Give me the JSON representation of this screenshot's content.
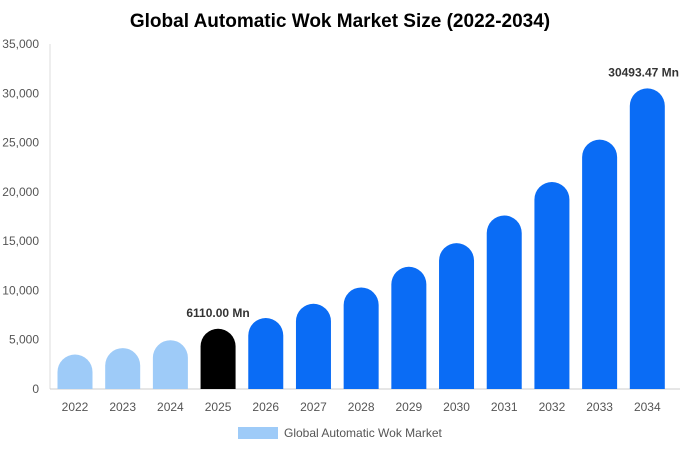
{
  "chart_data": {
    "type": "bar",
    "title": "Global Automatic Wok Market Size (2022-2034)",
    "xlabel": "",
    "ylabel": "",
    "categories": [
      "2022",
      "2023",
      "2024",
      "2025",
      "2026",
      "2027",
      "2028",
      "2029",
      "2030",
      "2031",
      "2032",
      "2033",
      "2034"
    ],
    "series": [
      {
        "name": "Global Automatic Wok Market",
        "values": [
          3500,
          4150,
          4950,
          6110,
          7200,
          8650,
          10300,
          12400,
          14800,
          17600,
          21000,
          25300,
          30493.47
        ]
      }
    ],
    "ylim": [
      0,
      35000
    ],
    "yticks": [
      0,
      5000,
      10000,
      15000,
      20000,
      25000,
      30000,
      35000
    ],
    "ytick_labels": [
      "0",
      "5,000",
      "10,000",
      "15,000",
      "20,000",
      "25,000",
      "30,000",
      "35,000"
    ],
    "data_labels": [
      {
        "category": "2025",
        "text": "6110.00 Mn"
      },
      {
        "category": "2034",
        "text": "30493.47 Mn"
      }
    ],
    "legend_position": "bottom",
    "grid": false,
    "colors": {
      "past": "#9ecbf8",
      "current": "#000000",
      "forecast": "#0a6cf5",
      "legend_swatch": "#9ecbf8"
    },
    "highlight_category": "2025"
  }
}
